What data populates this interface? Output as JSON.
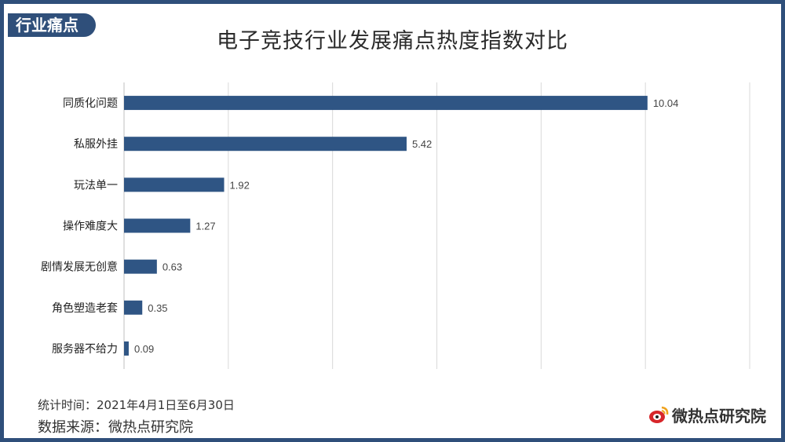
{
  "header": {
    "tag": "行业痛点",
    "title": "电子竞技行业发展痛点热度指数对比"
  },
  "chart_data": {
    "type": "bar",
    "orientation": "horizontal",
    "categories": [
      "同质化问题",
      "私服外挂",
      "玩法单一",
      "操作难度大",
      "剧情发展无创意",
      "角色塑造老套",
      "服务器不给力"
    ],
    "values": [
      10.04,
      5.42,
      1.92,
      1.27,
      0.63,
      0.35,
      0.09
    ],
    "data_labels": [
      "10.04",
      "5.42",
      "1.92",
      "1.27",
      "0.63",
      "0.35",
      "0.09"
    ],
    "xlim": [
      0,
      12
    ],
    "grid": true,
    "legend": "none",
    "bar_color": "#2f5584"
  },
  "footer": {
    "period": "统计时间：2021年4月1日至6月30日",
    "source": "数据来源：微热点研究院",
    "brand": "微热点研究院"
  },
  "colors": {
    "frame": "#2f4f7a",
    "logo_red": "#d7262a"
  }
}
